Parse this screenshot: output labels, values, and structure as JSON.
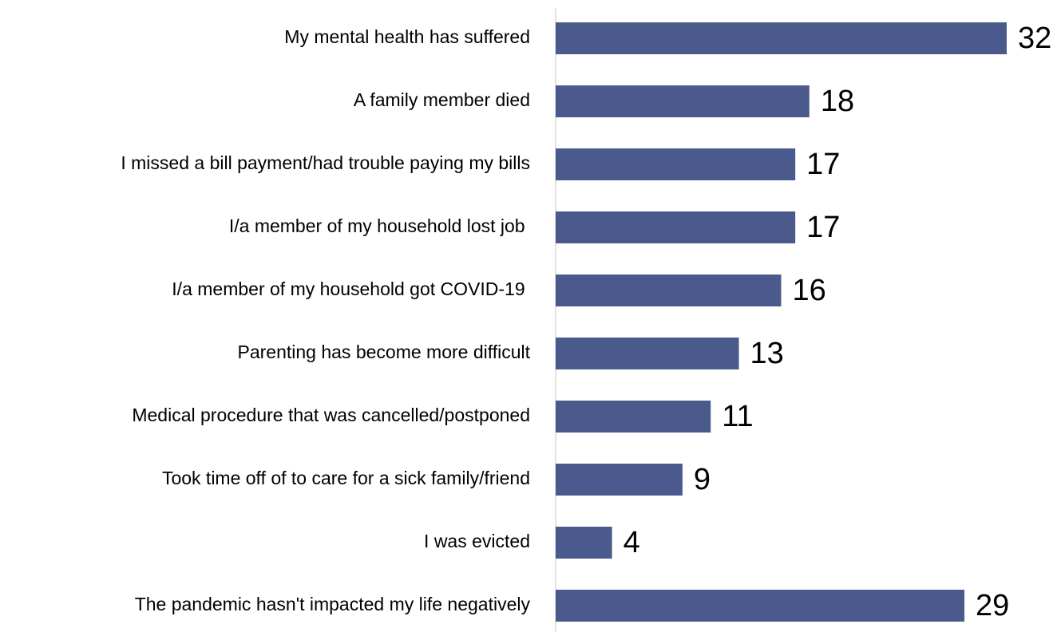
{
  "chart_data": {
    "type": "bar",
    "orientation": "horizontal",
    "categories": [
      "My mental health has suffered",
      "A family member died",
      "I missed a bill payment/had trouble paying my bills",
      "I/a member of my household lost job ",
      "I/a member of my household got COVID-19 ",
      "Parenting has become more difficult",
      "Medical procedure that was cancelled/postponed",
      "Took time off of to care for a sick family/friend",
      "I was evicted",
      "The pandemic hasn't impacted my life negatively"
    ],
    "values": [
      32,
      18,
      17,
      17,
      16,
      13,
      11,
      9,
      4,
      29
    ],
    "color": "#4b5a8c",
    "xlim": [
      0,
      32
    ]
  }
}
